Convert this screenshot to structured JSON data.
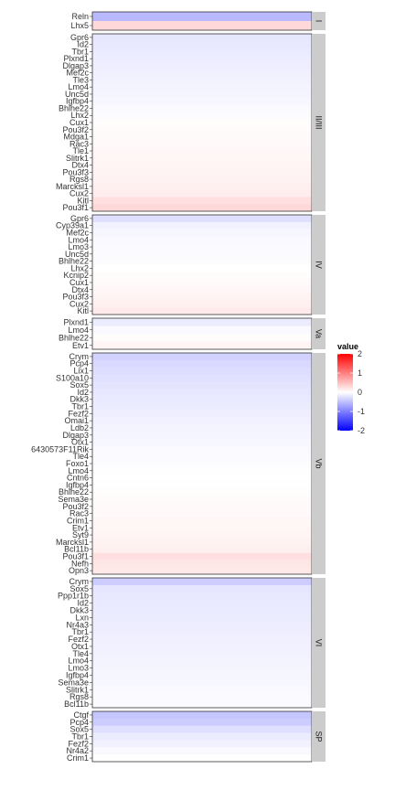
{
  "chart_data": {
    "type": "heatmap",
    "color_scale": {
      "low": "#0000ff",
      "mid": "#ffffff",
      "high": "#ff0000",
      "limits": [
        -2,
        2
      ]
    },
    "legend": {
      "title": "value",
      "ticks": [
        2,
        1,
        0,
        -1,
        -2
      ],
      "placement": "right"
    },
    "panels": [
      {
        "label": "I",
        "rows": [
          {
            "gene": "Reln",
            "value": -0.55
          },
          {
            "gene": "Lhx5",
            "value": 0.3
          }
        ]
      },
      {
        "label": "II/III",
        "rows": [
          {
            "gene": "Gpr6",
            "value": -0.2
          },
          {
            "gene": "Id2",
            "value": -0.18
          },
          {
            "gene": "Tbr1",
            "value": -0.16
          },
          {
            "gene": "Plxnd1",
            "value": -0.14
          },
          {
            "gene": "Dlgap3",
            "value": -0.13
          },
          {
            "gene": "Mef2c",
            "value": -0.12
          },
          {
            "gene": "Tle3",
            "value": -0.1
          },
          {
            "gene": "Lmo4",
            "value": -0.09
          },
          {
            "gene": "Unc5d",
            "value": -0.08
          },
          {
            "gene": "Igfbp4",
            "value": -0.06
          },
          {
            "gene": "Bhlhe22",
            "value": -0.04
          },
          {
            "gene": "Lhx2",
            "value": -0.02
          },
          {
            "gene": "Cux1",
            "value": 0.02
          },
          {
            "gene": "Pou3f2",
            "value": 0.03
          },
          {
            "gene": "Mdga1",
            "value": 0.04
          },
          {
            "gene": "Rac3",
            "value": 0.05
          },
          {
            "gene": "Tle1",
            "value": 0.06
          },
          {
            "gene": "Slitrk1",
            "value": 0.07
          },
          {
            "gene": "Dtx4",
            "value": 0.08
          },
          {
            "gene": "Pou3f3",
            "value": 0.09
          },
          {
            "gene": "Rgs8",
            "value": 0.1
          },
          {
            "gene": "Marcksl1",
            "value": 0.12
          },
          {
            "gene": "Cux2",
            "value": 0.15
          },
          {
            "gene": "Kitl",
            "value": 0.25
          },
          {
            "gene": "Pou3f1",
            "value": 0.3
          }
        ]
      },
      {
        "label": "IV",
        "rows": [
          {
            "gene": "Gpr6",
            "value": -0.25
          },
          {
            "gene": "Cyp39a1",
            "value": -0.1
          },
          {
            "gene": "Mef2c",
            "value": -0.07
          },
          {
            "gene": "Lmo4",
            "value": -0.05
          },
          {
            "gene": "Lmo3",
            "value": -0.04
          },
          {
            "gene": "Unc5d",
            "value": -0.03
          },
          {
            "gene": "Bhlhe22",
            "value": -0.02
          },
          {
            "gene": "Lhx2",
            "value": 0.0
          },
          {
            "gene": "Kcnip2",
            "value": 0.02
          },
          {
            "gene": "Cux1",
            "value": 0.04
          },
          {
            "gene": "Dtx4",
            "value": 0.06
          },
          {
            "gene": "Pou3f3",
            "value": 0.09
          },
          {
            "gene": "Cux2",
            "value": 0.12
          },
          {
            "gene": "Kitl",
            "value": 0.16
          }
        ]
      },
      {
        "label": "Va",
        "rows": [
          {
            "gene": "Plxnd1",
            "value": -0.15
          },
          {
            "gene": "Lmo4",
            "value": -0.05
          },
          {
            "gene": "Bhlhe22",
            "value": 0.02
          },
          {
            "gene": "Etv1",
            "value": 0.08
          }
        ]
      },
      {
        "label": "Vb",
        "rows": [
          {
            "gene": "Crym",
            "value": -0.35
          },
          {
            "gene": "Pcp4",
            "value": -0.3
          },
          {
            "gene": "Lix1",
            "value": -0.27
          },
          {
            "gene": "S100a10",
            "value": -0.24
          },
          {
            "gene": "Sox5",
            "value": -0.21
          },
          {
            "gene": "Id2",
            "value": -0.19
          },
          {
            "gene": "Dkk3",
            "value": -0.17
          },
          {
            "gene": "Tbr1",
            "value": -0.15
          },
          {
            "gene": "Fezf2",
            "value": -0.13
          },
          {
            "gene": "Omai1",
            "value": -0.11
          },
          {
            "gene": "Ldb2",
            "value": -0.09
          },
          {
            "gene": "Dlgap3",
            "value": -0.08
          },
          {
            "gene": "Otx1",
            "value": -0.06
          },
          {
            "gene": "6430573F11Rik",
            "value": -0.05
          },
          {
            "gene": "Tle4",
            "value": -0.03
          },
          {
            "gene": "Foxo1",
            "value": -0.02
          },
          {
            "gene": "Lmo4",
            "value": -0.01
          },
          {
            "gene": "Cntn6",
            "value": 0.0
          },
          {
            "gene": "Igfbp4",
            "value": 0.01
          },
          {
            "gene": "Bhlhe22",
            "value": 0.02
          },
          {
            "gene": "Sema3e",
            "value": 0.03
          },
          {
            "gene": "Pou3f2",
            "value": 0.04
          },
          {
            "gene": "Rac3",
            "value": 0.05
          },
          {
            "gene": "Crim1",
            "value": 0.06
          },
          {
            "gene": "Etv1",
            "value": 0.07
          },
          {
            "gene": "Syt9",
            "value": 0.08
          },
          {
            "gene": "Marcksl1",
            "value": 0.1
          },
          {
            "gene": "Bcl11b",
            "value": 0.12
          },
          {
            "gene": "Pou3f1",
            "value": 0.25
          },
          {
            "gene": "Nefh",
            "value": 0.2
          },
          {
            "gene": "Opn3",
            "value": 0.18
          }
        ]
      },
      {
        "label": "VI",
        "rows": [
          {
            "gene": "Crym",
            "value": -0.4
          },
          {
            "gene": "Sox5",
            "value": -0.2
          },
          {
            "gene": "Ppp1r1b",
            "value": -0.18
          },
          {
            "gene": "Id2",
            "value": -0.17
          },
          {
            "gene": "Dkk3",
            "value": -0.16
          },
          {
            "gene": "Lxn",
            "value": -0.15
          },
          {
            "gene": "Nr4a3",
            "value": -0.14
          },
          {
            "gene": "Tbr1",
            "value": -0.13
          },
          {
            "gene": "Fezf2",
            "value": -0.12
          },
          {
            "gene": "Otx1",
            "value": -0.11
          },
          {
            "gene": "Tle4",
            "value": -0.1
          },
          {
            "gene": "Lmo4",
            "value": -0.09
          },
          {
            "gene": "Lmo3",
            "value": -0.08
          },
          {
            "gene": "Igfbp4",
            "value": -0.07
          },
          {
            "gene": "Sema3e",
            "value": -0.06
          },
          {
            "gene": "Slitrk1",
            "value": -0.05
          },
          {
            "gene": "Rgs8",
            "value": -0.04
          },
          {
            "gene": "Bcl11b",
            "value": -0.03
          }
        ]
      },
      {
        "label": "SP",
        "rows": [
          {
            "gene": "Ctgf",
            "value": -0.45
          },
          {
            "gene": "Pcp4",
            "value": -0.4
          },
          {
            "gene": "Sox5",
            "value": -0.25
          },
          {
            "gene": "Tbr1",
            "value": -0.15
          },
          {
            "gene": "Fezf2",
            "value": -0.1
          },
          {
            "gene": "Nr4a2",
            "value": -0.05
          },
          {
            "gene": "Crim1",
            "value": 0.0
          }
        ]
      }
    ]
  }
}
